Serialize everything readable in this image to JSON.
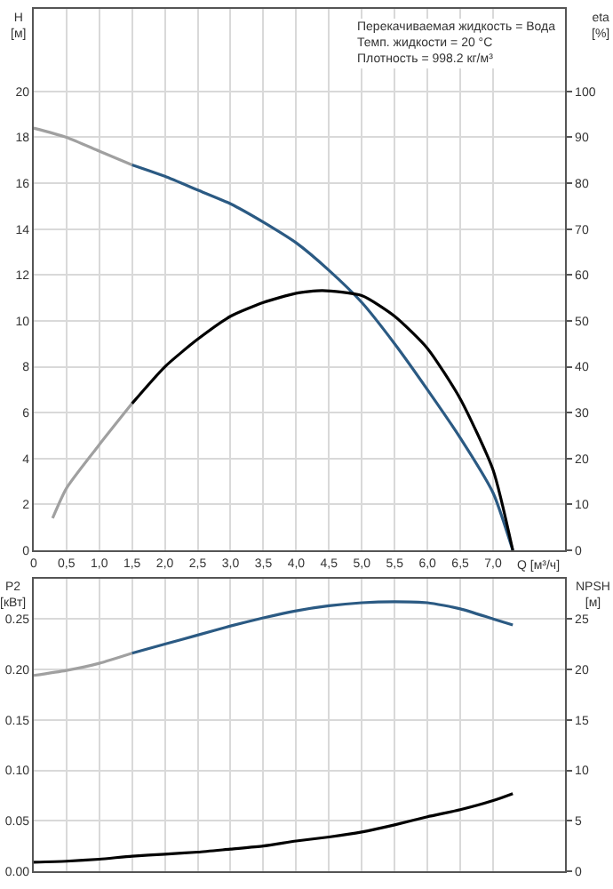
{
  "chart_data": [
    {
      "type": "line",
      "xlabel": "Q [м³/ч]",
      "ylabel": "H\n[м]",
      "y2label": "eta\n[%]",
      "annotations": [
        "Перекачиваемая жидкость = Вода",
        "Темп. жидкости = 20 °C",
        "Плотность = 998.2 кг/м³"
      ],
      "xlim": [
        0,
        8.1
      ],
      "xticks": [
        0,
        {
          "value": 0.5,
          "label": "0,5"
        },
        {
          "value": 1,
          "label": "1,0"
        },
        {
          "value": 1.5,
          "label": "1,5"
        },
        {
          "value": 2,
          "label": "2,0"
        },
        {
          "value": 2.5,
          "label": "2,5"
        },
        {
          "value": 3,
          "label": "3,0"
        },
        {
          "value": 3.5,
          "label": "3,5"
        },
        {
          "value": 4,
          "label": "4,0"
        },
        {
          "value": 4.5,
          "label": "4,5"
        },
        {
          "value": 5,
          "label": "5,0"
        },
        {
          "value": 5.5,
          "label": "5,5"
        },
        {
          "value": 6,
          "label": "6,0"
        },
        {
          "value": 6.5,
          "label": "6,5"
        },
        {
          "value": 7,
          "label": "7,0"
        }
      ],
      "ylim": [
        0,
        23.6
      ],
      "yticks": [
        0,
        2,
        4,
        6,
        8,
        10,
        12,
        14,
        16,
        18,
        20
      ],
      "y2lim": [
        0,
        118
      ],
      "y2ticks": [
        0,
        10,
        20,
        30,
        40,
        50,
        60,
        70,
        80,
        90,
        100
      ],
      "grid": true,
      "marker": "none",
      "line_style": "solid",
      "series": [
        {
          "color": "#a0a0a0",
          "x": [
            0,
            0.5,
            1,
            1.5
          ],
          "values": [
            18.4,
            18.0,
            17.4,
            16.8
          ]
        },
        {
          "color": "#2b5a83",
          "x": [
            1.5,
            2,
            2.5,
            3,
            3.5,
            4,
            4.5,
            5,
            5.5,
            6,
            6.5,
            7,
            7.3
          ],
          "values": [
            16.8,
            16.3,
            15.7,
            15.1,
            14.3,
            13.4,
            12.2,
            10.8,
            9.0,
            7.0,
            4.9,
            2.5,
            0
          ]
        },
        {
          "color": "#a0a0a0",
          "axis": "y2",
          "x": [
            0.29,
            0.5,
            1,
            1.5
          ],
          "values": [
            7,
            13.5,
            23,
            32
          ]
        },
        {
          "color": "#000000",
          "axis": "y2",
          "x": [
            1.5,
            2,
            2.5,
            3,
            3.5,
            4,
            4.4,
            5,
            5.5,
            6,
            6.5,
            7,
            7.3
          ],
          "values": [
            32,
            40,
            46,
            51,
            54,
            56,
            56.6,
            55.5,
            51,
            44,
            33,
            17.5,
            0
          ]
        }
      ]
    },
    {
      "type": "line",
      "ylabel": "P2\n[кВт]",
      "y2label": "NPSH\n[м]",
      "xlim": [
        0,
        8.1
      ],
      "tick_labels": "y",
      "ylim": [
        0,
        0.29
      ],
      "yticks": [
        {
          "value": 0,
          "label": "0.00"
        },
        {
          "value": 0.05,
          "label": "0.05"
        },
        {
          "value": 0.1,
          "label": "0.10"
        },
        {
          "value": 0.15,
          "label": "0.15"
        },
        {
          "value": 0.2,
          "label": "0.20"
        },
        {
          "value": 0.25,
          "label": "0.25"
        }
      ],
      "y2lim": [
        0,
        29
      ],
      "y2ticks": [
        0,
        5,
        10,
        15,
        20,
        25
      ],
      "grid": true,
      "marker": "none",
      "line_style": "solid",
      "series": [
        {
          "color": "#a0a0a0",
          "x": [
            0,
            0.5,
            1,
            1.5
          ],
          "values": [
            0.194,
            0.199,
            0.206,
            0.216
          ]
        },
        {
          "color": "#2b5a83",
          "x": [
            1.5,
            2,
            2.5,
            3,
            3.5,
            4,
            4.5,
            5,
            5.5,
            6,
            6.5,
            7,
            7.3
          ],
          "values": [
            0.216,
            0.225,
            0.234,
            0.243,
            0.251,
            0.258,
            0.263,
            0.266,
            0.267,
            0.266,
            0.26,
            0.25,
            0.244
          ]
        },
        {
          "color": "#000000",
          "axis": "y2",
          "x": [
            0,
            0.5,
            1,
            1.5,
            2,
            2.5,
            3,
            3.5,
            4,
            4.5,
            5,
            5.5,
            6,
            6.5,
            7,
            7.3
          ],
          "values": [
            0.9,
            1.0,
            1.2,
            1.5,
            1.7,
            1.9,
            2.2,
            2.5,
            3.0,
            3.4,
            3.9,
            4.6,
            5.4,
            6.1,
            7.0,
            7.7
          ]
        }
      ]
    }
  ]
}
